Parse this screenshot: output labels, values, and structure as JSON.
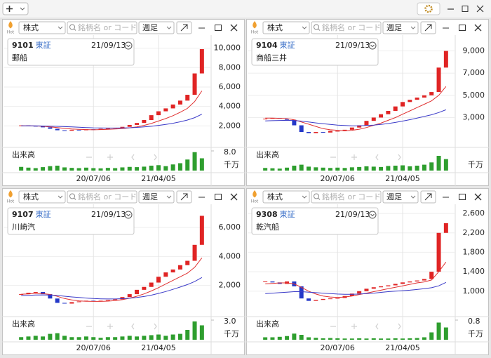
{
  "chart_data": [
    {
      "type": "candlestick",
      "hot": "Hot",
      "market": "株式",
      "search_placeholder": "銘柄名 or コード",
      "period": "週足",
      "code": "9101",
      "exchange": "東証",
      "date": "21/09/13",
      "name": "郵船",
      "categories": [
        null,
        null,
        null,
        null,
        null,
        null,
        null,
        null,
        null,
        null,
        "20/07/06",
        null,
        null,
        null,
        null,
        null,
        null,
        null,
        null,
        "21/04/05",
        null,
        null,
        null,
        null,
        null,
        null
      ],
      "values": [
        2050,
        2000,
        1950,
        1850,
        1700,
        1550,
        1500,
        1600,
        1550,
        1650,
        1600,
        1700,
        1750,
        1800,
        1900,
        2100,
        2300,
        2600,
        3100,
        3500,
        3800,
        4200,
        4600,
        5200,
        7400,
        9900
      ],
      "up_color": "#e02424",
      "down_color": "#2438c8",
      "ma": [
        {
          "color": "#e03030",
          "values": [
            2000,
            2000,
            1990,
            1960,
            1900,
            1820,
            1740,
            1680,
            1640,
            1620,
            1600,
            1620,
            1640,
            1680,
            1720,
            1800,
            1900,
            2050,
            2250,
            2500,
            2750,
            3050,
            3400,
            3800,
            4500,
            5600
          ]
        },
        {
          "color": "#3a3ac8",
          "values": [
            2000,
            2000,
            2000,
            1990,
            1970,
            1950,
            1920,
            1890,
            1860,
            1830,
            1800,
            1790,
            1780,
            1780,
            1790,
            1810,
            1840,
            1890,
            1960,
            2050,
            2150,
            2270,
            2420,
            2600,
            2850,
            3200
          ]
        }
      ],
      "ylim": [
        0,
        11200
      ],
      "yticks": [
        {
          "value": 2000,
          "label": "2,000"
        },
        {
          "value": 4000,
          "label": "4,000"
        },
        {
          "value": 6000,
          "label": "6,000"
        },
        {
          "value": 8000,
          "label": "8,000"
        },
        {
          "value": 10000,
          "label": "10,000"
        }
      ],
      "volume": {
        "title": "出来高",
        "unit": "千万",
        "color": "#2e9e2e",
        "ylim": [
          0,
          8
        ],
        "yticks": [
          {
            "value": 8,
            "label": "8.0"
          }
        ],
        "values": [
          1.5,
          1.2,
          1.0,
          1.4,
          1.8,
          2.0,
          1.3,
          1.1,
          1.0,
          1.2,
          1.0,
          0.9,
          1.1,
          1.0,
          1.3,
          1.5,
          1.4,
          1.6,
          2.0,
          2.2,
          1.8,
          2.5,
          3.0,
          4.5,
          7.5,
          5.0
        ]
      }
    },
    {
      "type": "candlestick",
      "hot": "Hot",
      "market": "株式",
      "search_placeholder": "銘柄名 or コード",
      "period": "週足",
      "code": "9104",
      "exchange": "東証",
      "date": "21/09/13",
      "name": "商船三井",
      "categories": [
        null,
        null,
        null,
        null,
        null,
        null,
        null,
        null,
        null,
        null,
        "20/07/06",
        null,
        null,
        null,
        null,
        null,
        null,
        null,
        null,
        "21/04/05",
        null,
        null,
        null,
        null,
        null,
        null
      ],
      "values": [
        2900,
        2950,
        2900,
        2800,
        2300,
        1700,
        1600,
        1700,
        1650,
        1800,
        1800,
        1900,
        2100,
        2300,
        2700,
        3000,
        3300,
        3600,
        4000,
        4400,
        4600,
        4800,
        5000,
        5300,
        7500,
        9000
      ],
      "up_color": "#e02424",
      "down_color": "#2438c8",
      "ma": [
        {
          "color": "#e03030",
          "values": [
            2950,
            2950,
            2930,
            2900,
            2800,
            2600,
            2400,
            2200,
            2000,
            1900,
            1850,
            1800,
            1850,
            1950,
            2100,
            2300,
            2500,
            2750,
            3000,
            3300,
            3600,
            3900,
            4200,
            4500,
            5000,
            5800
          ]
        },
        {
          "color": "#3a3ac8",
          "values": [
            2700,
            2720,
            2740,
            2750,
            2730,
            2680,
            2600,
            2520,
            2440,
            2380,
            2320,
            2280,
            2260,
            2260,
            2280,
            2320,
            2380,
            2460,
            2560,
            2680,
            2810,
            2950,
            3100,
            3250,
            3450,
            3700
          ]
        }
      ],
      "ylim": [
        500,
        10300
      ],
      "yticks": [
        {
          "value": 3000,
          "label": "3,000"
        },
        {
          "value": 5000,
          "label": "5,000"
        },
        {
          "value": 7000,
          "label": "7,000"
        },
        {
          "value": 9000,
          "label": "9,000"
        }
      ],
      "volume": {
        "title": "出来高",
        "unit": "千万",
        "color": "#2e9e2e",
        "ylim": [
          0,
          6
        ],
        "values": [
          0.8,
          0.7,
          0.6,
          0.9,
          1.5,
          1.8,
          1.2,
          1.0,
          0.9,
          0.8,
          0.9,
          0.8,
          1.0,
          1.1,
          1.3,
          1.2,
          1.1,
          1.4,
          1.5,
          1.6,
          1.3,
          1.5,
          1.8,
          2.5,
          4.5,
          3.5
        ]
      }
    },
    {
      "type": "candlestick",
      "hot": "Hot",
      "market": "株式",
      "search_placeholder": "銘柄名 or コード",
      "period": "週足",
      "code": "9107",
      "exchange": "東証",
      "date": "21/09/13",
      "name": "川崎汽",
      "categories": [
        null,
        null,
        null,
        null,
        null,
        null,
        null,
        null,
        null,
        null,
        "20/07/06",
        null,
        null,
        null,
        null,
        null,
        null,
        null,
        null,
        "21/04/05",
        null,
        null,
        null,
        null,
        null,
        null
      ],
      "values": [
        1400,
        1500,
        1550,
        1400,
        1100,
        800,
        750,
        850,
        900,
        950,
        900,
        950,
        1000,
        1050,
        1200,
        1400,
        1700,
        1900,
        2200,
        2600,
        2900,
        3100,
        3400,
        3700,
        4800,
        6800
      ],
      "up_color": "#e02424",
      "down_color": "#2438c8",
      "ma": [
        {
          "color": "#e03030",
          "values": [
            1400,
            1420,
            1450,
            1440,
            1380,
            1250,
            1100,
            1000,
            940,
            910,
            900,
            900,
            920,
            960,
            1020,
            1120,
            1260,
            1420,
            1620,
            1850,
            2100,
            2350,
            2600,
            2850,
            3250,
            3900
          ]
        },
        {
          "color": "#3a3ac8",
          "values": [
            1300,
            1320,
            1340,
            1350,
            1340,
            1310,
            1260,
            1210,
            1170,
            1130,
            1100,
            1080,
            1070,
            1070,
            1090,
            1120,
            1170,
            1240,
            1330,
            1450,
            1580,
            1730,
            1890,
            2060,
            2270,
            2550
          ]
        }
      ],
      "ylim": [
        0,
        7500
      ],
      "yticks": [
        {
          "value": 2000,
          "label": "2,000"
        },
        {
          "value": 4000,
          "label": "4,000"
        },
        {
          "value": 6000,
          "label": "6,000"
        }
      ],
      "volume": {
        "title": "出来高",
        "unit": "千万",
        "color": "#2e9e2e",
        "ylim": [
          0,
          3
        ],
        "yticks": [
          {
            "value": 3,
            "label": "3.0"
          }
        ],
        "values": [
          0.4,
          0.5,
          0.6,
          0.5,
          0.9,
          1.0,
          0.6,
          0.4,
          0.4,
          0.5,
          0.4,
          0.3,
          0.4,
          0.4,
          0.5,
          0.6,
          0.5,
          0.6,
          0.7,
          0.8,
          0.6,
          0.8,
          0.9,
          1.5,
          2.8,
          2.2
        ]
      }
    },
    {
      "type": "candlestick",
      "hot": "Hot",
      "market": "株式",
      "search_placeholder": "銘柄名 or コード",
      "period": "週足",
      "code": "9308",
      "exchange": "東証",
      "date": "21/09/13",
      "name": "乾汽船",
      "categories": [
        null,
        null,
        null,
        null,
        null,
        null,
        null,
        null,
        null,
        null,
        "20/07/06",
        null,
        null,
        null,
        null,
        null,
        null,
        null,
        null,
        "21/04/05",
        null,
        null,
        null,
        null,
        null,
        null
      ],
      "values": [
        1200,
        1180,
        1150,
        1200,
        1100,
        850,
        800,
        820,
        840,
        850,
        860,
        900,
        950,
        1000,
        1050,
        1080,
        1100,
        1120,
        1150,
        1180,
        1200,
        1220,
        1250,
        1400,
        2200,
        2400
      ],
      "up_color": "#e02424",
      "down_color": "#2438c8",
      "ma": [
        {
          "color": "#e03030",
          "values": [
            1150,
            1160,
            1170,
            1170,
            1150,
            1080,
            1000,
            940,
            900,
            880,
            870,
            880,
            900,
            930,
            960,
            990,
            1020,
            1050,
            1080,
            1110,
            1140,
            1170,
            1190,
            1230,
            1400,
            1600
          ]
        },
        {
          "color": "#3a3ac8",
          "values": [
            950,
            960,
            970,
            980,
            990,
            990,
            980,
            970,
            960,
            950,
            940,
            935,
            935,
            940,
            950,
            960,
            975,
            990,
            1000,
            1010,
            1020,
            1035,
            1050,
            1070,
            1110,
            1180
          ]
        }
      ],
      "ylim": [
        520,
        2760
      ],
      "yticks": [
        {
          "value": 1000,
          "label": "1,000"
        },
        {
          "value": 1400,
          "label": "1,400"
        },
        {
          "value": 1800,
          "label": "1,800"
        },
        {
          "value": 2200,
          "label": "2,200"
        },
        {
          "value": 2600,
          "label": "2,600"
        }
      ],
      "volume": {
        "title": "出来高",
        "unit": "千万",
        "color": "#2e9e2e",
        "ylim": [
          0,
          0.8
        ],
        "yticks": [
          {
            "value": 0.8,
            "label": "0.8"
          }
        ],
        "values": [
          0.1,
          0.1,
          0.12,
          0.15,
          0.25,
          0.2,
          0.1,
          0.08,
          0.06,
          0.07,
          0.06,
          0.05,
          0.05,
          0.06,
          0.05,
          0.06,
          0.05,
          0.05,
          0.06,
          0.05,
          0.06,
          0.07,
          0.1,
          0.3,
          0.7,
          0.5
        ]
      }
    }
  ]
}
